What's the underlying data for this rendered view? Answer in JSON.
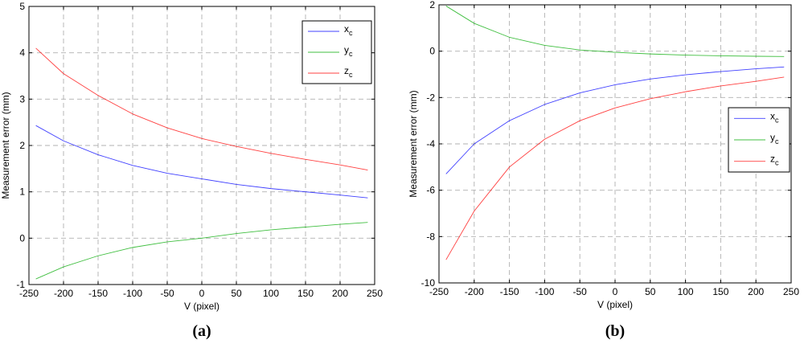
{
  "chart_data": [
    {
      "type": "line",
      "caption": "(a)",
      "xlabel": "V (pixel)",
      "ylabel": "Measurement error (mm)",
      "xlim": [
        -250,
        250
      ],
      "ylim": [
        -1,
        5
      ],
      "xticks": [
        -250,
        -200,
        -150,
        -100,
        -50,
        0,
        50,
        100,
        150,
        200,
        250
      ],
      "yticks": [
        -1,
        0,
        1,
        2,
        3,
        4,
        5
      ],
      "grid": true,
      "legend_position": "top-right",
      "x": [
        -240,
        -200,
        -150,
        -100,
        -50,
        0,
        50,
        100,
        150,
        200,
        240
      ],
      "series": [
        {
          "name": "x",
          "subscript": "c",
          "color": "#0000ff",
          "values": [
            2.43,
            2.1,
            1.8,
            1.57,
            1.4,
            1.28,
            1.16,
            1.07,
            1.0,
            0.93,
            0.87
          ]
        },
        {
          "name": "y",
          "subscript": "c",
          "color": "#00aa00",
          "values": [
            -0.88,
            -0.62,
            -0.38,
            -0.2,
            -0.08,
            0.0,
            0.1,
            0.18,
            0.24,
            0.3,
            0.34
          ]
        },
        {
          "name": "z",
          "subscript": "c",
          "color": "#ff0000",
          "values": [
            4.1,
            3.55,
            3.08,
            2.68,
            2.38,
            2.15,
            1.98,
            1.83,
            1.7,
            1.58,
            1.47
          ]
        }
      ]
    },
    {
      "type": "line",
      "caption": "(b)",
      "xlabel": "V (pixel)",
      "ylabel": "Measurement error (mm)",
      "xlim": [
        -250,
        250
      ],
      "ylim": [
        -10,
        2
      ],
      "xticks": [
        -250,
        -200,
        -150,
        -100,
        -50,
        0,
        50,
        100,
        150,
        200,
        250
      ],
      "yticks": [
        -10,
        -8,
        -6,
        -4,
        -2,
        0,
        2
      ],
      "grid": true,
      "legend_position": "right",
      "x": [
        -240,
        -200,
        -150,
        -100,
        -50,
        0,
        50,
        100,
        150,
        200,
        240
      ],
      "series": [
        {
          "name": "x",
          "subscript": "c",
          "color": "#0000ff",
          "values": [
            -5.3,
            -4.0,
            -3.0,
            -2.3,
            -1.8,
            -1.45,
            -1.2,
            -1.02,
            -0.88,
            -0.76,
            -0.68
          ]
        },
        {
          "name": "y",
          "subscript": "c",
          "color": "#00aa00",
          "values": [
            1.95,
            1.2,
            0.6,
            0.25,
            0.05,
            -0.05,
            -0.12,
            -0.17,
            -0.2,
            -0.22,
            -0.23
          ]
        },
        {
          "name": "z",
          "subscript": "c",
          "color": "#ff0000",
          "values": [
            -9.0,
            -6.9,
            -5.0,
            -3.8,
            -3.0,
            -2.45,
            -2.05,
            -1.75,
            -1.5,
            -1.3,
            -1.12
          ]
        }
      ]
    }
  ]
}
